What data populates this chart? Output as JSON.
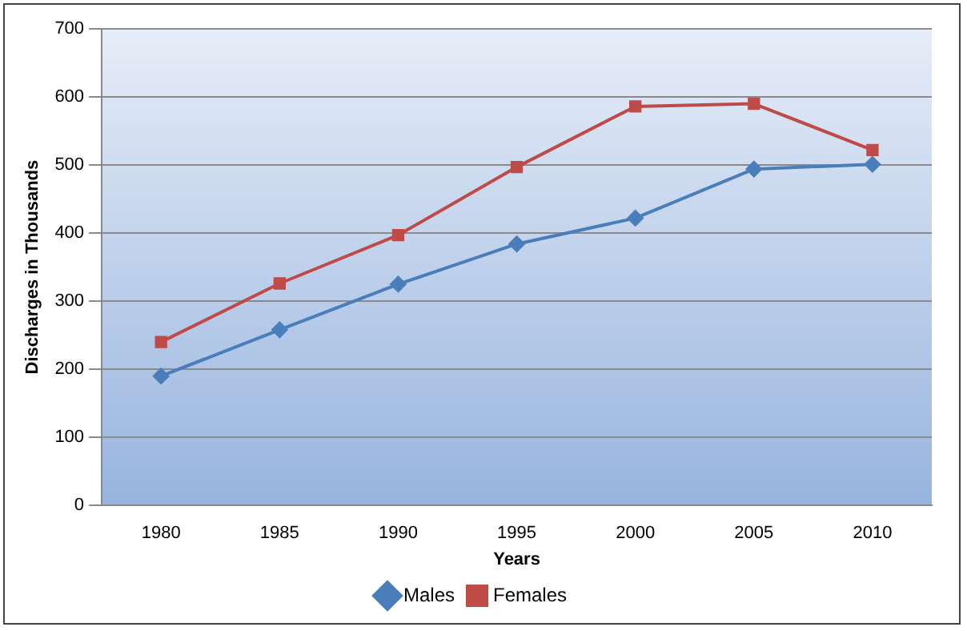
{
  "chart_data": {
    "type": "line",
    "xlabel": "Years",
    "ylabel": "Discharges in Thousands",
    "categories": [
      "1980",
      "1985",
      "1990",
      "1995",
      "2000",
      "2005",
      "2010"
    ],
    "series": [
      {
        "name": "Males",
        "color": "#4a7ebb",
        "marker": "diamond",
        "values": [
          190,
          258,
          325,
          384,
          422,
          494,
          501
        ]
      },
      {
        "name": "Females",
        "color": "#be4b48",
        "marker": "square",
        "values": [
          240,
          326,
          397,
          497,
          586,
          590,
          522
        ]
      }
    ],
    "ylim": [
      0,
      700
    ],
    "yticks": [
      0,
      100,
      200,
      300,
      400,
      500,
      600,
      700
    ],
    "grid": "y",
    "legend": "bottom",
    "line_style": "solid"
  }
}
